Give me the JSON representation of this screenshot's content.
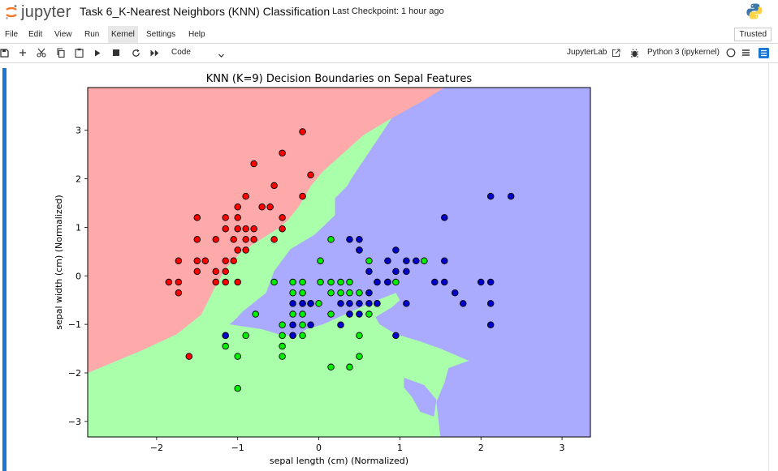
{
  "app": {
    "logo_text": "jupyter",
    "notebook_title": "Task 6_K-Nearest Neighbors (KNN) Classification",
    "checkpoint": "Last Checkpoint: 1 hour ago"
  },
  "menu": {
    "items": [
      "File",
      "Edit",
      "View",
      "Run",
      "Kernel",
      "Settings",
      "Help"
    ],
    "active": "Kernel",
    "trusted": "Trusted"
  },
  "toolbar": {
    "cell_type": "Code",
    "jupyterlab_label": "JupyterLab",
    "kernel": "Python 3 (ipykernel)",
    "icons": [
      "save-icon",
      "add-cell-icon",
      "cut-icon",
      "copy-icon",
      "paste-icon",
      "run-icon",
      "stop-icon",
      "restart-icon",
      "fast-forward-icon"
    ]
  },
  "chart_data": {
    "type": "scatter",
    "title": "KNN (K=9) Decision Boundaries on Sepal Features",
    "xlabel": "sepal length (cm) (Normalized)",
    "ylabel": "sepal width (cm) (Normalized)",
    "xlim": [
      -2.85,
      3.35
    ],
    "ylim": [
      -3.32,
      3.88
    ],
    "xticks": [
      -2,
      -1,
      0,
      1,
      2,
      3
    ],
    "yticks": [
      -3,
      -2,
      -1,
      0,
      1,
      2,
      3
    ],
    "region_colors": {
      "class0": "#ffaaaa",
      "class1": "#aaffaa",
      "class2": "#aaaaff"
    },
    "series": [
      {
        "color": "#ff0000",
        "points": [
          [
            -0.2,
            2.97
          ],
          [
            -0.45,
            2.53
          ],
          [
            -0.8,
            2.31
          ],
          [
            -0.1,
            2.08
          ],
          [
            -0.55,
            1.86
          ],
          [
            -0.2,
            1.64
          ],
          [
            -0.9,
            1.64
          ],
          [
            -1.0,
            1.42
          ],
          [
            -0.7,
            1.42
          ],
          [
            -0.6,
            1.42
          ],
          [
            -1.5,
            1.2
          ],
          [
            -1.15,
            1.2
          ],
          [
            -1.0,
            1.2
          ],
          [
            -0.45,
            1.2
          ],
          [
            -1.15,
            0.97
          ],
          [
            -1.0,
            0.97
          ],
          [
            -0.9,
            0.97
          ],
          [
            -0.8,
            0.97
          ],
          [
            -0.45,
            0.97
          ],
          [
            -1.5,
            0.75
          ],
          [
            -1.27,
            0.75
          ],
          [
            -1.05,
            0.75
          ],
          [
            -0.9,
            0.75
          ],
          [
            -0.8,
            0.75
          ],
          [
            -0.55,
            0.75
          ],
          [
            -1.0,
            0.53
          ],
          [
            -0.9,
            0.53
          ],
          [
            -1.73,
            0.31
          ],
          [
            -1.5,
            0.31
          ],
          [
            -1.4,
            0.31
          ],
          [
            -1.15,
            0.31
          ],
          [
            -1.05,
            0.31
          ],
          [
            -1.5,
            0.09
          ],
          [
            -1.27,
            0.09
          ],
          [
            -1.15,
            0.09
          ],
          [
            -1.85,
            -0.13
          ],
          [
            -1.73,
            -0.13
          ],
          [
            -1.27,
            -0.13
          ],
          [
            -1.15,
            -0.13
          ],
          [
            -1.0,
            -0.13
          ],
          [
            -1.73,
            -0.35
          ],
          [
            -1.6,
            -1.66
          ]
        ]
      },
      {
        "color": "#00ee00",
        "points": [
          [
            0.15,
            0.75
          ],
          [
            0.5,
            0.53
          ],
          [
            0.62,
            0.31
          ],
          [
            1.3,
            0.31
          ],
          [
            0.02,
            0.31
          ],
          [
            -0.55,
            -0.13
          ],
          [
            -0.32,
            -0.13
          ],
          [
            -0.2,
            -0.13
          ],
          [
            0.02,
            -0.13
          ],
          [
            0.15,
            -0.13
          ],
          [
            0.27,
            -0.13
          ],
          [
            0.38,
            -0.13
          ],
          [
            0.72,
            -0.13
          ],
          [
            0.85,
            -0.13
          ],
          [
            0.95,
            -0.13
          ],
          [
            -0.32,
            -0.35
          ],
          [
            -0.2,
            -0.35
          ],
          [
            0.15,
            -0.35
          ],
          [
            0.27,
            -0.35
          ],
          [
            0.38,
            -0.35
          ],
          [
            0.5,
            -0.35
          ],
          [
            0.62,
            -0.35
          ],
          [
            -0.2,
            -0.57
          ],
          [
            -0.1,
            -0.57
          ],
          [
            0.0,
            -0.57
          ],
          [
            0.72,
            -0.57
          ],
          [
            -0.78,
            -0.79
          ],
          [
            -0.32,
            -0.79
          ],
          [
            -0.2,
            -0.79
          ],
          [
            0.15,
            -0.79
          ],
          [
            0.38,
            -0.79
          ],
          [
            0.62,
            -0.79
          ],
          [
            -0.45,
            -1.01
          ],
          [
            -0.2,
            -1.01
          ],
          [
            -0.45,
            -1.23
          ],
          [
            -0.32,
            -1.23
          ],
          [
            -0.2,
            -1.23
          ],
          [
            -1.15,
            -1.23
          ],
          [
            -0.9,
            -1.23
          ],
          [
            0.5,
            -1.23
          ],
          [
            -1.15,
            -1.45
          ],
          [
            -0.45,
            -1.45
          ],
          [
            -1.0,
            -1.66
          ],
          [
            -0.45,
            -1.66
          ],
          [
            0.5,
            -1.66
          ],
          [
            0.15,
            -1.88
          ],
          [
            0.38,
            -1.88
          ],
          [
            -1.0,
            -2.32
          ]
        ]
      },
      {
        "color": "#0000cc",
        "points": [
          [
            2.12,
            1.64
          ],
          [
            2.37,
            1.64
          ],
          [
            1.55,
            1.2
          ],
          [
            0.38,
            0.75
          ],
          [
            0.5,
            0.75
          ],
          [
            0.95,
            0.53
          ],
          [
            0.5,
            0.53
          ],
          [
            0.85,
            0.31
          ],
          [
            1.08,
            0.31
          ],
          [
            1.2,
            0.31
          ],
          [
            1.55,
            0.31
          ],
          [
            0.62,
            0.09
          ],
          [
            0.95,
            0.09
          ],
          [
            1.08,
            0.09
          ],
          [
            0.72,
            -0.13
          ],
          [
            0.85,
            -0.13
          ],
          [
            1.43,
            -0.13
          ],
          [
            1.55,
            -0.13
          ],
          [
            2.0,
            -0.13
          ],
          [
            2.12,
            -0.13
          ],
          [
            0.62,
            -0.35
          ],
          [
            1.68,
            -0.35
          ],
          [
            -0.32,
            -0.57
          ],
          [
            -0.2,
            -0.57
          ],
          [
            -0.1,
            -0.57
          ],
          [
            0.27,
            -0.57
          ],
          [
            0.38,
            -0.57
          ],
          [
            0.5,
            -0.57
          ],
          [
            0.62,
            -0.57
          ],
          [
            0.72,
            -0.57
          ],
          [
            1.08,
            -0.57
          ],
          [
            1.78,
            -0.57
          ],
          [
            2.12,
            -0.57
          ],
          [
            0.38,
            -0.79
          ],
          [
            0.5,
            -0.79
          ],
          [
            -0.32,
            -1.01
          ],
          [
            -0.1,
            -1.01
          ],
          [
            0.27,
            -1.01
          ],
          [
            2.12,
            -1.01
          ],
          [
            -1.15,
            -1.23
          ],
          [
            -0.32,
            -1.23
          ],
          [
            0.95,
            -1.23
          ]
        ]
      }
    ]
  }
}
